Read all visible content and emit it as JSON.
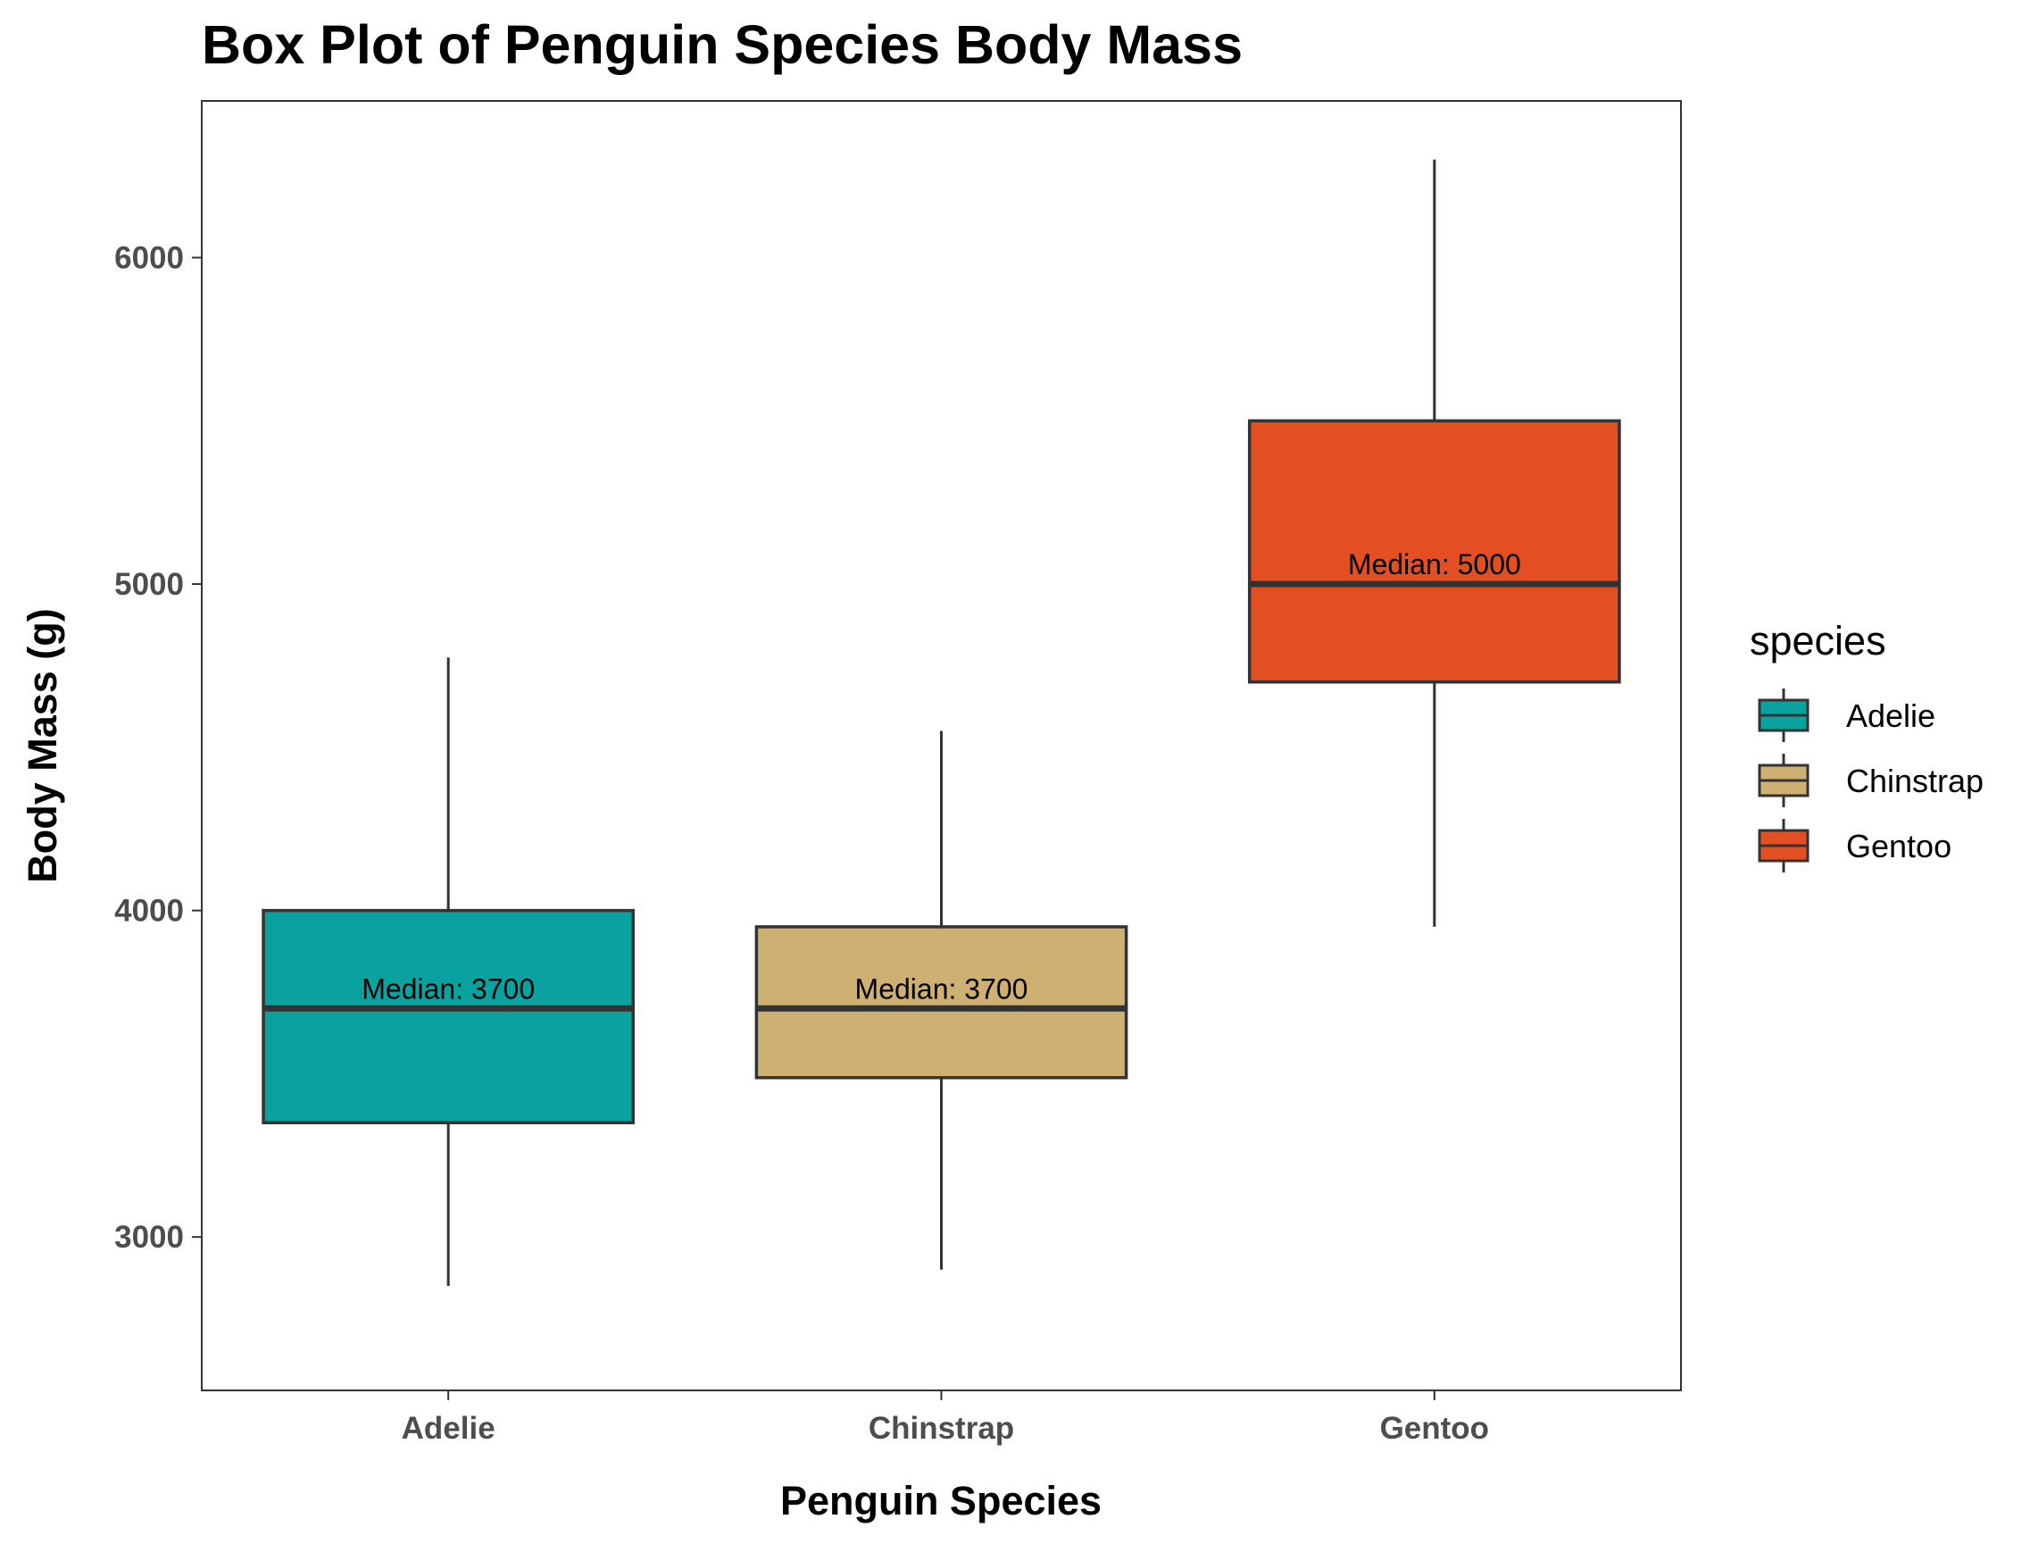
{
  "chart_data": {
    "type": "box",
    "title": "Box Plot of Penguin Species Body Mass",
    "xlabel": "Penguin Species",
    "ylabel": "Body Mass (g)",
    "ylim": [
      2530,
      6480
    ],
    "yticks": [
      3000,
      4000,
      5000,
      6000
    ],
    "grid": false,
    "legend_position": "right",
    "legend_title": "species",
    "categories": [
      "Adelie",
      "Chinstrap",
      "Gentoo"
    ],
    "series": [
      {
        "name": "Adelie",
        "color": "#0aa29f",
        "whisker_low": 2850,
        "q1": 3350,
        "median": 3700,
        "q3": 4000,
        "whisker_high": 4775,
        "label": "Median: 3700"
      },
      {
        "name": "Chinstrap",
        "color": "#ceb073",
        "whisker_low": 2900,
        "q1": 3488,
        "median": 3700,
        "q3": 3950,
        "whisker_high": 4550,
        "label": "Median: 3700"
      },
      {
        "name": "Gentoo",
        "color": "#e34f22",
        "whisker_low": 3950,
        "q1": 4700,
        "median": 5000,
        "q3": 5500,
        "whisker_high": 6300,
        "label": "Median: 5000"
      }
    ]
  }
}
